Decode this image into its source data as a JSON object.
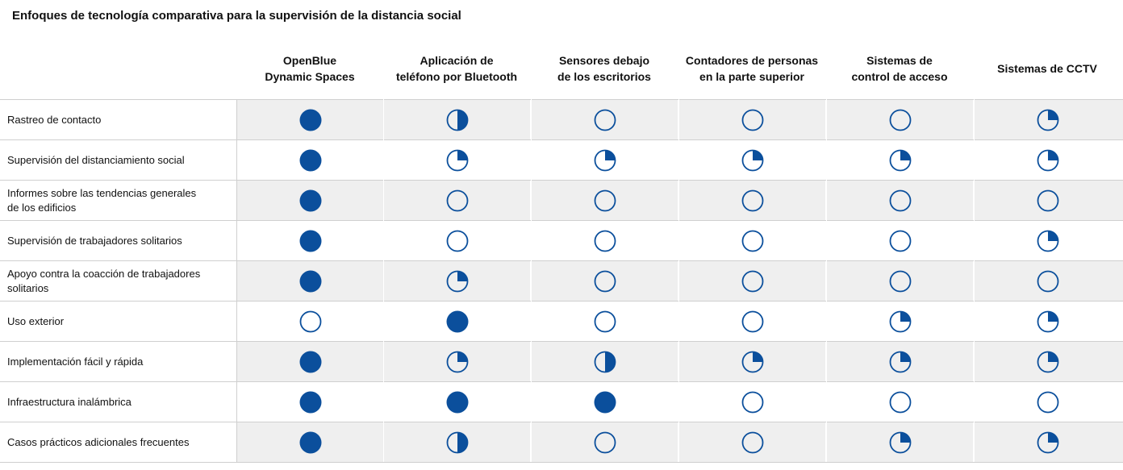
{
  "title": "Enfoques de tecnología comparativa para la supervisión de la distancia social",
  "chart_data": {
    "type": "table",
    "columns": [
      "OpenBlue\nDynamic Spaces",
      "Aplicación de\nteléfono por Bluetooth",
      "Sensores debajo\nde los escritorios",
      "Contadores de personas\nen la parte superior",
      "Sistemas de\ncontrol de acceso",
      "Sistemas de CCTV"
    ],
    "rows": [
      {
        "label": "Rastreo de contacto",
        "values": [
          1,
          0.5,
          0,
          0,
          0,
          0.25
        ]
      },
      {
        "label": "Supervisión del distanciamiento social",
        "values": [
          1,
          0.25,
          0.25,
          0.25,
          0.25,
          0.25
        ]
      },
      {
        "label": "Informes sobre las tendencias generales\nde los edificios",
        "values": [
          1,
          0,
          0,
          0,
          0,
          0
        ]
      },
      {
        "label": "Supervisión de trabajadores solitarios",
        "values": [
          1,
          0,
          0,
          0,
          0,
          0.25
        ]
      },
      {
        "label": "Apoyo contra la coacción de trabajadores\nsolitarios",
        "values": [
          1,
          0.25,
          0,
          0,
          0,
          0
        ]
      },
      {
        "label": "Uso exterior",
        "values": [
          0,
          1,
          0,
          0,
          0.25,
          0.25
        ]
      },
      {
        "label": "Implementación fácil y rápida",
        "values": [
          1,
          0.25,
          0.5,
          0.25,
          0.25,
          0.25
        ]
      },
      {
        "label": "Infraestructura inalámbrica",
        "values": [
          1,
          1,
          1,
          0,
          0,
          0
        ]
      },
      {
        "label": "Casos prácticos adicionales frecuentes",
        "values": [
          1,
          0.5,
          0,
          0,
          0.25,
          0.25
        ]
      }
    ]
  },
  "colors": {
    "mark": "#0b4f9c",
    "shade": "#efefef",
    "line": "#cfcfcf"
  }
}
